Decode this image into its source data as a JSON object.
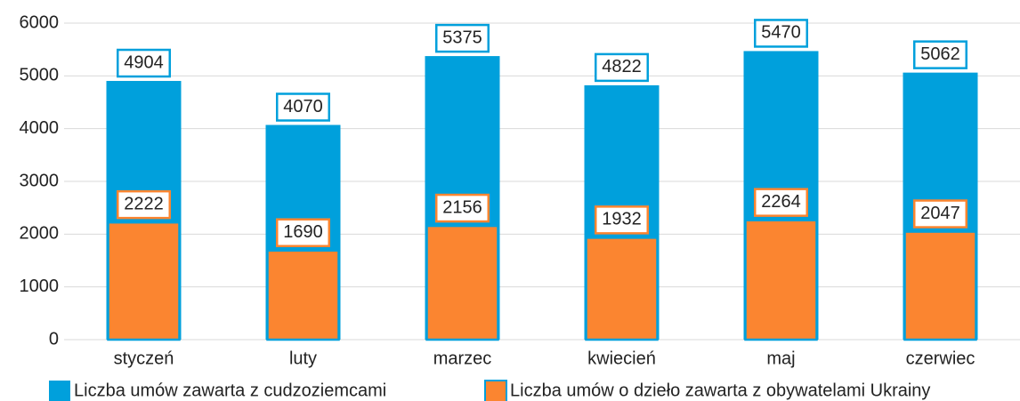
{
  "chart_data": {
    "type": "bar",
    "categories": [
      "styczeń",
      "luty",
      "marzec",
      "kwiecień",
      "maj",
      "czerwiec"
    ],
    "series": [
      {
        "name": "Liczba umów zawarta z cudzoziemcami",
        "color": "#00a0dc",
        "values": [
          4904,
          4070,
          5375,
          4822,
          5470,
          5062
        ]
      },
      {
        "name": "Liczba umów o dzieło zawarta z obywatelami Ukrainy",
        "color": "#fb8530",
        "values": [
          2222,
          1690,
          2156,
          1932,
          2264,
          2047
        ]
      }
    ],
    "ylim": [
      0,
      6000
    ],
    "yticks": [
      0,
      1000,
      2000,
      3000,
      4000,
      5000,
      6000
    ],
    "grid": true
  }
}
